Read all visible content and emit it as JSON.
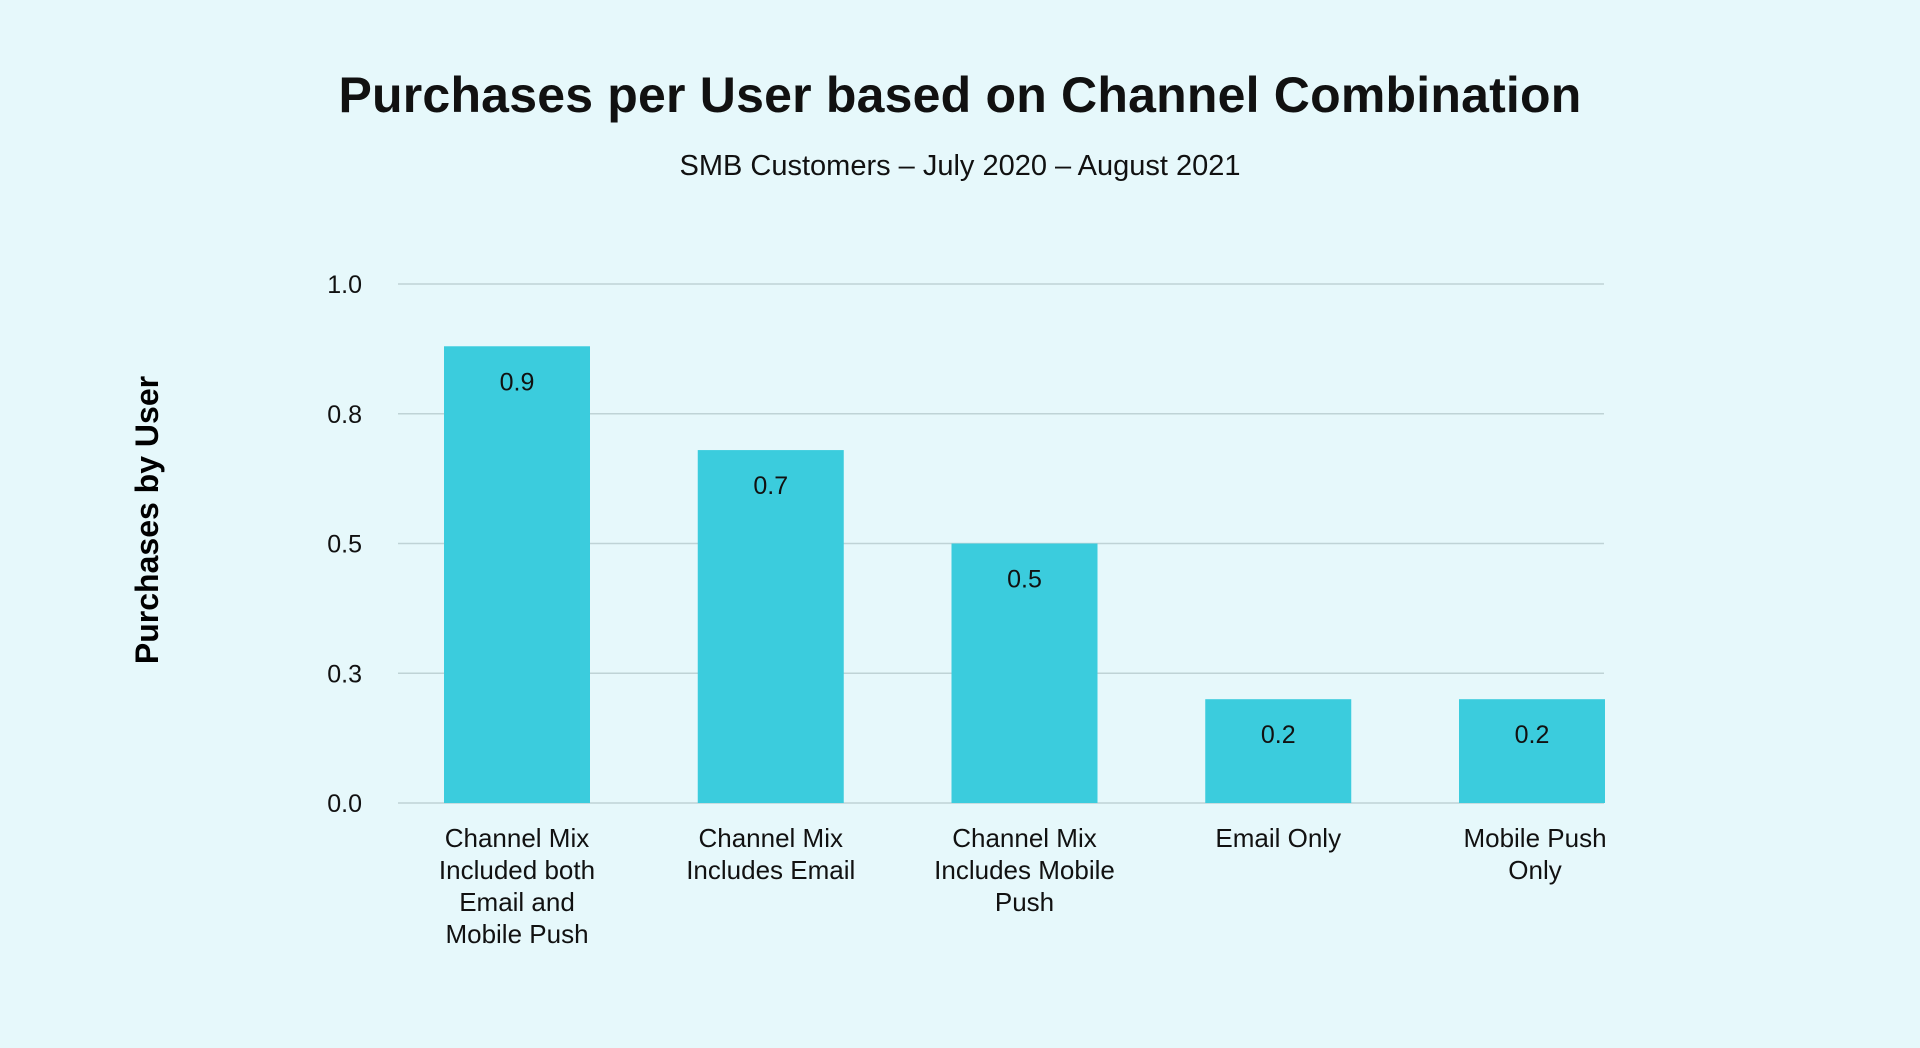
{
  "chart_data": {
    "type": "bar",
    "title": "Purchases per User based on Channel Combination",
    "subtitle": "SMB Customers – July 2020 – August 2021",
    "xlabel": "",
    "ylabel": "Purchases by User",
    "ylim": [
      0,
      1.0
    ],
    "yticks": [
      {
        "value": 0.0,
        "label": "0.0"
      },
      {
        "value": 0.25,
        "label": "0.3"
      },
      {
        "value": 0.5,
        "label": "0.5"
      },
      {
        "value": 0.75,
        "label": "0.8"
      },
      {
        "value": 1.0,
        "label": "1.0"
      }
    ],
    "grid": true,
    "legend": "none",
    "categories": [
      [
        "Channel Mix",
        "Included both",
        "Email and",
        "Mobile Push"
      ],
      [
        "Channel Mix",
        "Includes Email"
      ],
      [
        "Channel Mix",
        "Includes Mobile",
        "Push"
      ],
      [
        "Email Only"
      ],
      [
        "Mobile Push",
        "Only"
      ]
    ],
    "values": [
      0.88,
      0.68,
      0.5,
      0.2,
      0.2
    ],
    "data_labels": [
      "0.9",
      "0.7",
      "0.5",
      "0.2",
      "0.2"
    ],
    "colors": {
      "bar": "#3bccdd",
      "grid": "#bfd3d6",
      "background": "#e6f8fb",
      "text": "#111111"
    }
  }
}
